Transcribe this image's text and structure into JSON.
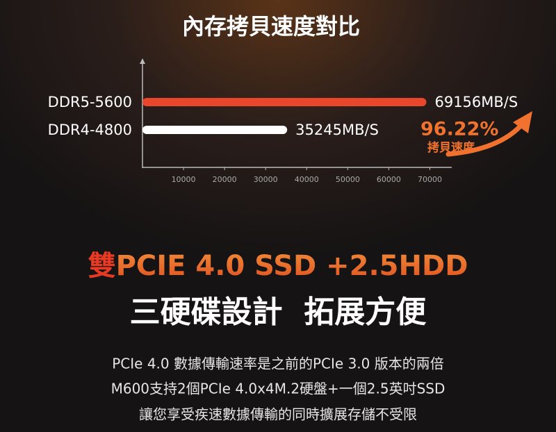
{
  "chart_data": {
    "type": "bar",
    "orientation": "horizontal",
    "title": "內存拷貝速度對比",
    "categories": [
      "DDR5-5600",
      "DDR4-4800"
    ],
    "values": [
      69156,
      35245
    ],
    "value_labels": [
      "69156MB/S",
      "35245MB/S"
    ],
    "colors": [
      "#e8472b",
      "#ffffff"
    ],
    "xlim": [
      0,
      75000
    ],
    "xticks": [
      10000,
      20000,
      30000,
      40000,
      50000,
      60000,
      70000
    ],
    "annotations": [
      "96.22%",
      "拷貝速度"
    ]
  },
  "headline": {
    "highlight": "雙",
    "title": "PCIE 4.0 SSD +2.5HDD",
    "subtitle": "三硬碟設計  拓展方便"
  },
  "body": [
    "PCIe 4.0 數據傳輸速率是之前的PCIe 3.0 版本的兩倍",
    "M600支持2個PCIe 4.0x4M.2硬盤+一個2.5英吋SSD",
    "讓您享受疾速數據傳輸的同時擴展存儲不受限"
  ]
}
